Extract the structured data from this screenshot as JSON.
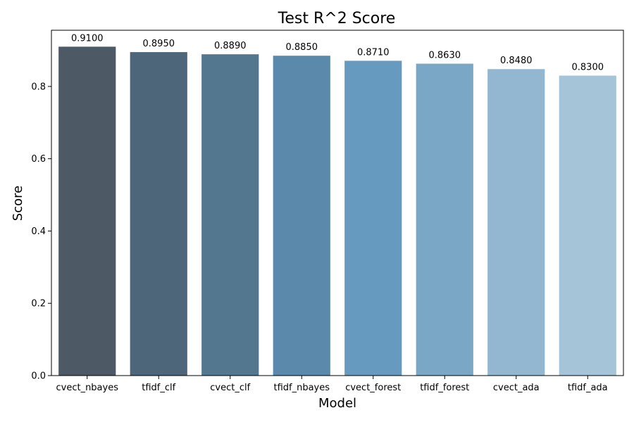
{
  "chart_data": {
    "type": "bar",
    "title": "Test R^2 Score",
    "xlabel": "Model",
    "ylabel": "Score",
    "categories": [
      "cvect_nbayes",
      "tfidf_clf",
      "cvect_clf",
      "tfidf_nbayes",
      "cvect_forest",
      "tfidf_forest",
      "cvect_ada",
      "tfidf_ada"
    ],
    "values": [
      0.91,
      0.895,
      0.889,
      0.885,
      0.871,
      0.863,
      0.848,
      0.83
    ],
    "value_labels": [
      "0.9100",
      "0.8950",
      "0.8890",
      "0.8850",
      "0.8710",
      "0.8630",
      "0.8480",
      "0.8300"
    ],
    "ylim": [
      0,
      0.9555
    ],
    "yticks": [
      0.0,
      0.2,
      0.4,
      0.6,
      0.8
    ],
    "ytick_labels": [
      "0.0",
      "0.2",
      "0.4",
      "0.6",
      "0.8"
    ],
    "colors": [
      "#4d5a65",
      "#4e6679",
      "#52778f",
      "#5a89ab",
      "#679abf",
      "#7ba7c7",
      "#93b7d0",
      "#a6c4d8"
    ],
    "grid": false,
    "legend": "none"
  }
}
